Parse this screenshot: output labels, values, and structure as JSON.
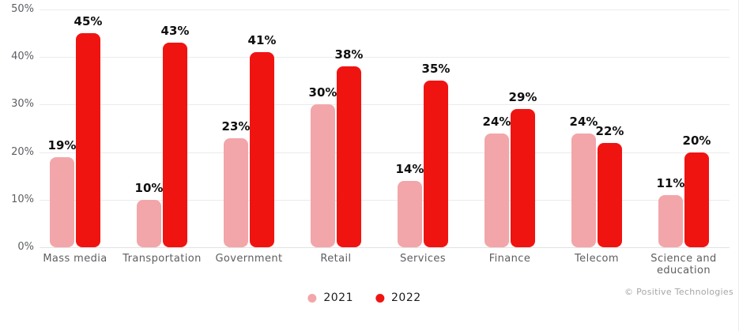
{
  "chart_data": {
    "type": "bar",
    "title": "",
    "categories": [
      "Mass media",
      "Transportation",
      "Government",
      "Retail",
      "Services",
      "Finance",
      "Telecom",
      "Science and education"
    ],
    "series": [
      {
        "name": "2021",
        "color": "#f2a6a9",
        "values": [
          19,
          10,
          23,
          30,
          14,
          24,
          24,
          11
        ]
      },
      {
        "name": "2022",
        "color": "#f01411",
        "values": [
          45,
          43,
          41,
          38,
          35,
          29,
          22,
          20
        ]
      }
    ],
    "value_suffix": "%",
    "xlabel": "",
    "ylabel": "",
    "ylim": [
      0,
      50
    ],
    "ytick_values": [
      0,
      10,
      20,
      30,
      40,
      50
    ],
    "ytick_labels": [
      "0%",
      "10%",
      "20%",
      "30%",
      "40%",
      "50%"
    ],
    "grid": true,
    "legend_position": "bottom-center"
  },
  "colors": {
    "grid": "#ebebeb",
    "baseline": "#e2e2e2",
    "axis_text": "#5d5f63",
    "category_text": "#5d5e61",
    "value_text": "#0f0f0f"
  },
  "footer": {
    "copyright": "© Positive Technologies"
  }
}
